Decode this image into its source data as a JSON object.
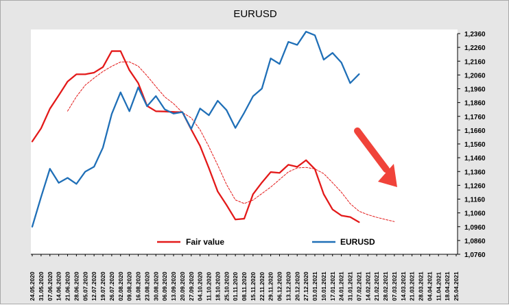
{
  "chart_data": {
    "type": "line",
    "title": "EURUSD",
    "xlabel": "",
    "ylabel": "",
    "ylim": [
      1.076,
      1.236
    ],
    "y_ticks": [
      "1,2360",
      "1,2260",
      "1,2160",
      "1,2060",
      "1,1960",
      "1,1860",
      "1,1760",
      "1,1660",
      "1,1560",
      "1,1460",
      "1,1360",
      "1,1260",
      "1,1160",
      "1,1060",
      "1,0960",
      "1,0860",
      "1,0760"
    ],
    "x": [
      "24.05.2020",
      "31.05.2020",
      "07.06.2020",
      "14.06.2020",
      "21.06.2020",
      "28.06.2020",
      "05.07.2020",
      "12.07.2020",
      "19.07.2020",
      "26.07.2020",
      "02.08.2020",
      "09.08.2020",
      "16.08.2020",
      "23.08.2020",
      "30.08.2020",
      "06.09.2020",
      "13.09.2020",
      "20.09.2020",
      "27.09.2020",
      "04.10.2020",
      "11.10.2020",
      "18.10.2020",
      "25.10.2020",
      "01.11.2020",
      "08.11.2020",
      "15.11.2020",
      "22.11.2020",
      "29.11.2020",
      "06.12.2020",
      "13.12.2020",
      "20.12.2020",
      "27.12.2020",
      "03.01.2021",
      "10.01.2021",
      "17.01.2021",
      "24.01.2021",
      "31.01.2021",
      "07.02.2021",
      "14.02.2021",
      "21.02.2021",
      "28.02.2021",
      "07.03.2021",
      "14.03.2021",
      "21.03.2021",
      "28.03.2021",
      "04.04.2021",
      "11.04.2021",
      "18.04.2021",
      "25.04.2021"
    ],
    "grid": false,
    "legend_position": "bottom",
    "series": [
      {
        "name": "Fair value",
        "color": "#e31919",
        "style": "solid",
        "values": [
          1.1578,
          1.1673,
          1.1815,
          1.1912,
          1.2012,
          1.2065,
          1.2065,
          1.2077,
          1.2117,
          1.2233,
          1.2233,
          1.2095,
          1.2001,
          1.1836,
          1.1797,
          1.1795,
          1.1792,
          1.179,
          1.1665,
          1.1546,
          1.1385,
          1.1215,
          1.1117,
          1.1012,
          1.1018,
          1.1196,
          1.128,
          1.1356,
          1.135,
          1.1409,
          1.1394,
          1.1442,
          1.1378,
          1.1196,
          1.1085,
          1.1041,
          1.103,
          1.0993,
          null,
          null,
          null,
          null,
          null,
          null,
          null,
          null,
          null,
          null,
          null
        ]
      },
      {
        "name": "",
        "color": "#e31919",
        "style": "dashed",
        "values": [
          null,
          null,
          null,
          null,
          1.1798,
          1.1903,
          1.1986,
          1.2038,
          1.2085,
          1.2123,
          1.2154,
          1.2155,
          1.2124,
          1.2054,
          1.1976,
          1.1901,
          1.1852,
          1.1788,
          1.1749,
          1.1663,
          1.154,
          1.1406,
          1.1266,
          1.1154,
          1.1128,
          1.1153,
          1.12,
          1.1247,
          1.1302,
          1.1357,
          1.1386,
          1.139,
          1.1379,
          1.1345,
          1.1279,
          1.121,
          1.1127,
          1.1072,
          1.1047,
          1.1028,
          1.1012,
          1.0997,
          null,
          null,
          null,
          null,
          null,
          null,
          null
        ]
      },
      {
        "name": "EURUSD",
        "color": "#1f6fb7",
        "style": "solid",
        "values": [
          1.096,
          1.1175,
          1.138,
          1.1278,
          1.1314,
          1.127,
          1.1359,
          1.1395,
          1.1533,
          1.1777,
          1.1934,
          1.1797,
          1.197,
          1.1833,
          1.1907,
          1.1811,
          1.178,
          1.1791,
          1.1669,
          1.1817,
          1.1768,
          1.1873,
          1.1805,
          1.1676,
          1.1786,
          1.1906,
          1.1961,
          1.218,
          1.214,
          1.23,
          1.2278,
          1.2374,
          1.2348,
          1.2171,
          1.222,
          1.215,
          1.2001,
          1.2066,
          null,
          null,
          null,
          null,
          null,
          null,
          null,
          null,
          null,
          null,
          null
        ]
      }
    ]
  }
}
